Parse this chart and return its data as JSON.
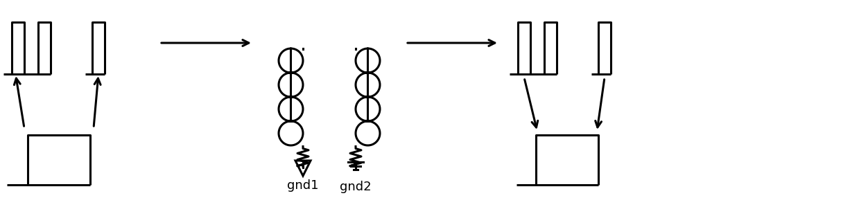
{
  "fig_width": 12.39,
  "fig_height": 3.12,
  "dpi": 100,
  "bg_color": "#ffffff",
  "line_color": "#000000",
  "line_width": 2.2,
  "gnd1_label": "gnd1",
  "gnd2_label": "gnd2",
  "label_fontsize": 13
}
